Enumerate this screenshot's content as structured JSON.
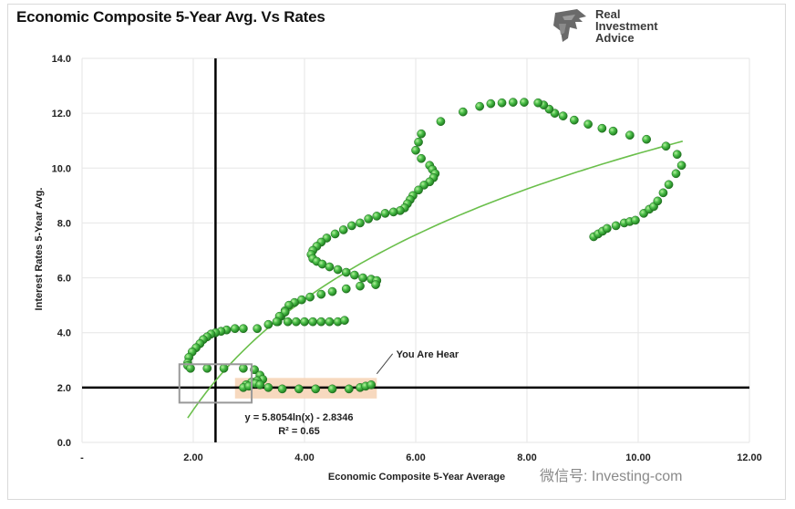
{
  "title": "Economic Composite 5-Year Avg. Vs Rates",
  "logo": {
    "line1": "Real",
    "line2": "Investment",
    "line3": "Advice"
  },
  "watermark": "微信号: Investing-com",
  "chart_data": {
    "type": "scatter",
    "xlabel": "Economic Composite 5-Year Average",
    "ylabel": "Interest Rates 5-Year Avg.",
    "xlim": [
      0,
      12
    ],
    "ylim": [
      0,
      14
    ],
    "x_ticks": [
      {
        "value": 0,
        "label": "-"
      },
      {
        "value": 2,
        "label": "2.00"
      },
      {
        "value": 4,
        "label": "4.00"
      },
      {
        "value": 6,
        "label": "6.00"
      },
      {
        "value": 8,
        "label": "8.00"
      },
      {
        "value": 10,
        "label": "10.00"
      },
      {
        "value": 12,
        "label": "12.00"
      }
    ],
    "y_ticks": [
      {
        "value": 0,
        "label": "0.0"
      },
      {
        "value": 2,
        "label": "2.0"
      },
      {
        "value": 4,
        "label": "4.0"
      },
      {
        "value": 6,
        "label": "6.0"
      },
      {
        "value": 8,
        "label": "8.0"
      },
      {
        "value": 10,
        "label": "10.0"
      },
      {
        "value": 12,
        "label": "12.0"
      },
      {
        "value": 14,
        "label": "14.0"
      }
    ],
    "grid": true,
    "colors": {
      "points": "#3aa53a",
      "trend": "#6abf4b",
      "highlight": "#f6d2b4",
      "reference": "#000000",
      "box": "#999999"
    },
    "series": [
      {
        "points": [
          [
            9.2,
            7.5
          ],
          [
            9.28,
            7.6
          ],
          [
            9.36,
            7.7
          ],
          [
            9.44,
            7.8
          ],
          [
            9.6,
            7.9
          ],
          [
            9.75,
            8.0
          ],
          [
            9.85,
            8.05
          ],
          [
            9.95,
            8.1
          ],
          [
            10.1,
            8.35
          ],
          [
            10.2,
            8.5
          ],
          [
            10.28,
            8.6
          ],
          [
            10.35,
            8.8
          ],
          [
            10.45,
            9.1
          ],
          [
            10.55,
            9.4
          ],
          [
            10.68,
            9.8
          ],
          [
            10.78,
            10.1
          ],
          [
            10.7,
            10.5
          ],
          [
            10.5,
            10.8
          ],
          [
            10.15,
            11.05
          ],
          [
            9.85,
            11.2
          ],
          [
            9.55,
            11.35
          ],
          [
            9.35,
            11.45
          ],
          [
            9.1,
            11.6
          ],
          [
            8.85,
            11.75
          ],
          [
            8.65,
            11.9
          ],
          [
            8.5,
            12.0
          ],
          [
            8.4,
            12.15
          ],
          [
            8.3,
            12.3
          ],
          [
            8.2,
            12.38
          ],
          [
            7.95,
            12.4
          ],
          [
            7.75,
            12.4
          ],
          [
            7.55,
            12.38
          ],
          [
            7.35,
            12.35
          ],
          [
            7.15,
            12.25
          ],
          [
            6.85,
            12.05
          ],
          [
            6.45,
            11.7
          ],
          [
            6.1,
            11.25
          ],
          [
            6.05,
            10.95
          ],
          [
            6.0,
            10.65
          ],
          [
            6.1,
            10.35
          ],
          [
            6.25,
            10.1
          ],
          [
            6.3,
            9.95
          ],
          [
            6.35,
            9.8
          ],
          [
            6.32,
            9.65
          ],
          [
            6.25,
            9.5
          ],
          [
            6.15,
            9.38
          ],
          [
            6.05,
            9.2
          ],
          [
            5.95,
            9.0
          ],
          [
            5.9,
            8.85
          ],
          [
            5.85,
            8.7
          ],
          [
            5.8,
            8.55
          ],
          [
            5.72,
            8.45
          ],
          [
            5.6,
            8.4
          ],
          [
            5.45,
            8.35
          ],
          [
            5.3,
            8.25
          ],
          [
            5.15,
            8.15
          ],
          [
            5.0,
            8.0
          ],
          [
            4.85,
            7.9
          ],
          [
            4.7,
            7.75
          ],
          [
            4.55,
            7.6
          ],
          [
            4.4,
            7.45
          ],
          [
            4.3,
            7.3
          ],
          [
            4.22,
            7.15
          ],
          [
            4.15,
            7.0
          ],
          [
            4.12,
            6.85
          ],
          [
            4.15,
            6.7
          ],
          [
            4.22,
            6.6
          ],
          [
            4.32,
            6.5
          ],
          [
            4.45,
            6.4
          ],
          [
            4.6,
            6.3
          ],
          [
            4.75,
            6.2
          ],
          [
            4.9,
            6.1
          ],
          [
            5.05,
            6.0
          ],
          [
            5.2,
            5.95
          ],
          [
            5.3,
            5.9
          ],
          [
            5.28,
            5.75
          ],
          [
            5.0,
            5.7
          ],
          [
            4.75,
            5.6
          ],
          [
            4.5,
            5.5
          ],
          [
            4.3,
            5.4
          ],
          [
            4.1,
            5.3
          ],
          [
            3.95,
            5.2
          ],
          [
            3.82,
            5.1
          ],
          [
            3.72,
            5.0
          ],
          [
            3.65,
            4.8
          ],
          [
            3.58,
            4.6
          ],
          [
            3.52,
            4.4
          ],
          [
            3.7,
            4.4
          ],
          [
            3.85,
            4.4
          ],
          [
            4.0,
            4.4
          ],
          [
            4.15,
            4.4
          ],
          [
            4.3,
            4.4
          ],
          [
            4.45,
            4.4
          ],
          [
            4.6,
            4.4
          ],
          [
            4.72,
            4.45
          ],
          [
            3.65,
            4.75
          ],
          [
            3.55,
            4.6
          ],
          [
            3.5,
            4.4
          ],
          [
            3.35,
            4.3
          ],
          [
            3.15,
            4.15
          ],
          [
            2.9,
            4.15
          ],
          [
            2.75,
            4.15
          ],
          [
            2.6,
            4.1
          ],
          [
            2.5,
            4.05
          ],
          [
            2.4,
            4.0
          ],
          [
            2.32,
            3.95
          ],
          [
            2.25,
            3.85
          ],
          [
            2.18,
            3.75
          ],
          [
            2.12,
            3.6
          ],
          [
            2.05,
            3.45
          ],
          [
            1.98,
            3.3
          ],
          [
            1.92,
            3.1
          ],
          [
            1.9,
            2.9
          ],
          [
            1.9,
            2.8
          ],
          [
            1.95,
            2.7
          ],
          [
            2.25,
            2.7
          ],
          [
            2.55,
            2.7
          ],
          [
            2.9,
            2.7
          ],
          [
            3.1,
            2.65
          ],
          [
            3.2,
            2.45
          ],
          [
            3.25,
            2.3
          ],
          [
            3.15,
            2.25
          ],
          [
            3.05,
            2.2
          ],
          [
            2.95,
            2.1
          ],
          [
            2.9,
            2.0
          ],
          [
            3.0,
            2.05
          ],
          [
            3.12,
            2.15
          ],
          [
            3.2,
            2.1
          ],
          [
            3.35,
            2.0
          ],
          [
            3.6,
            1.95
          ],
          [
            3.9,
            1.95
          ],
          [
            4.2,
            1.95
          ],
          [
            4.5,
            1.95
          ],
          [
            4.8,
            1.95
          ],
          [
            5.0,
            2.0
          ],
          [
            5.1,
            2.05
          ],
          [
            5.2,
            2.1
          ]
        ]
      }
    ],
    "trendline": {
      "equation": "y = 5.8054ln(x) - 2.8346",
      "r2": "R² = 0.65",
      "a": 5.8054,
      "b": -2.8346,
      "x_from": 1.9,
      "x_to": 10.8
    },
    "reference_lines": {
      "vertical_x": 2.4,
      "horizontal_y": 2.0
    },
    "highlight_band": {
      "x_from": 2.75,
      "x_to": 5.3,
      "y_from": 1.6,
      "y_to": 2.35
    },
    "box": {
      "x_from": 1.75,
      "x_to": 3.05,
      "y_from": 1.45,
      "y_to": 2.85
    },
    "annotation": {
      "text": "You Are Hear",
      "x": 5.3,
      "y": 2.5,
      "text_x": 5.65,
      "text_y": 3.1
    }
  }
}
